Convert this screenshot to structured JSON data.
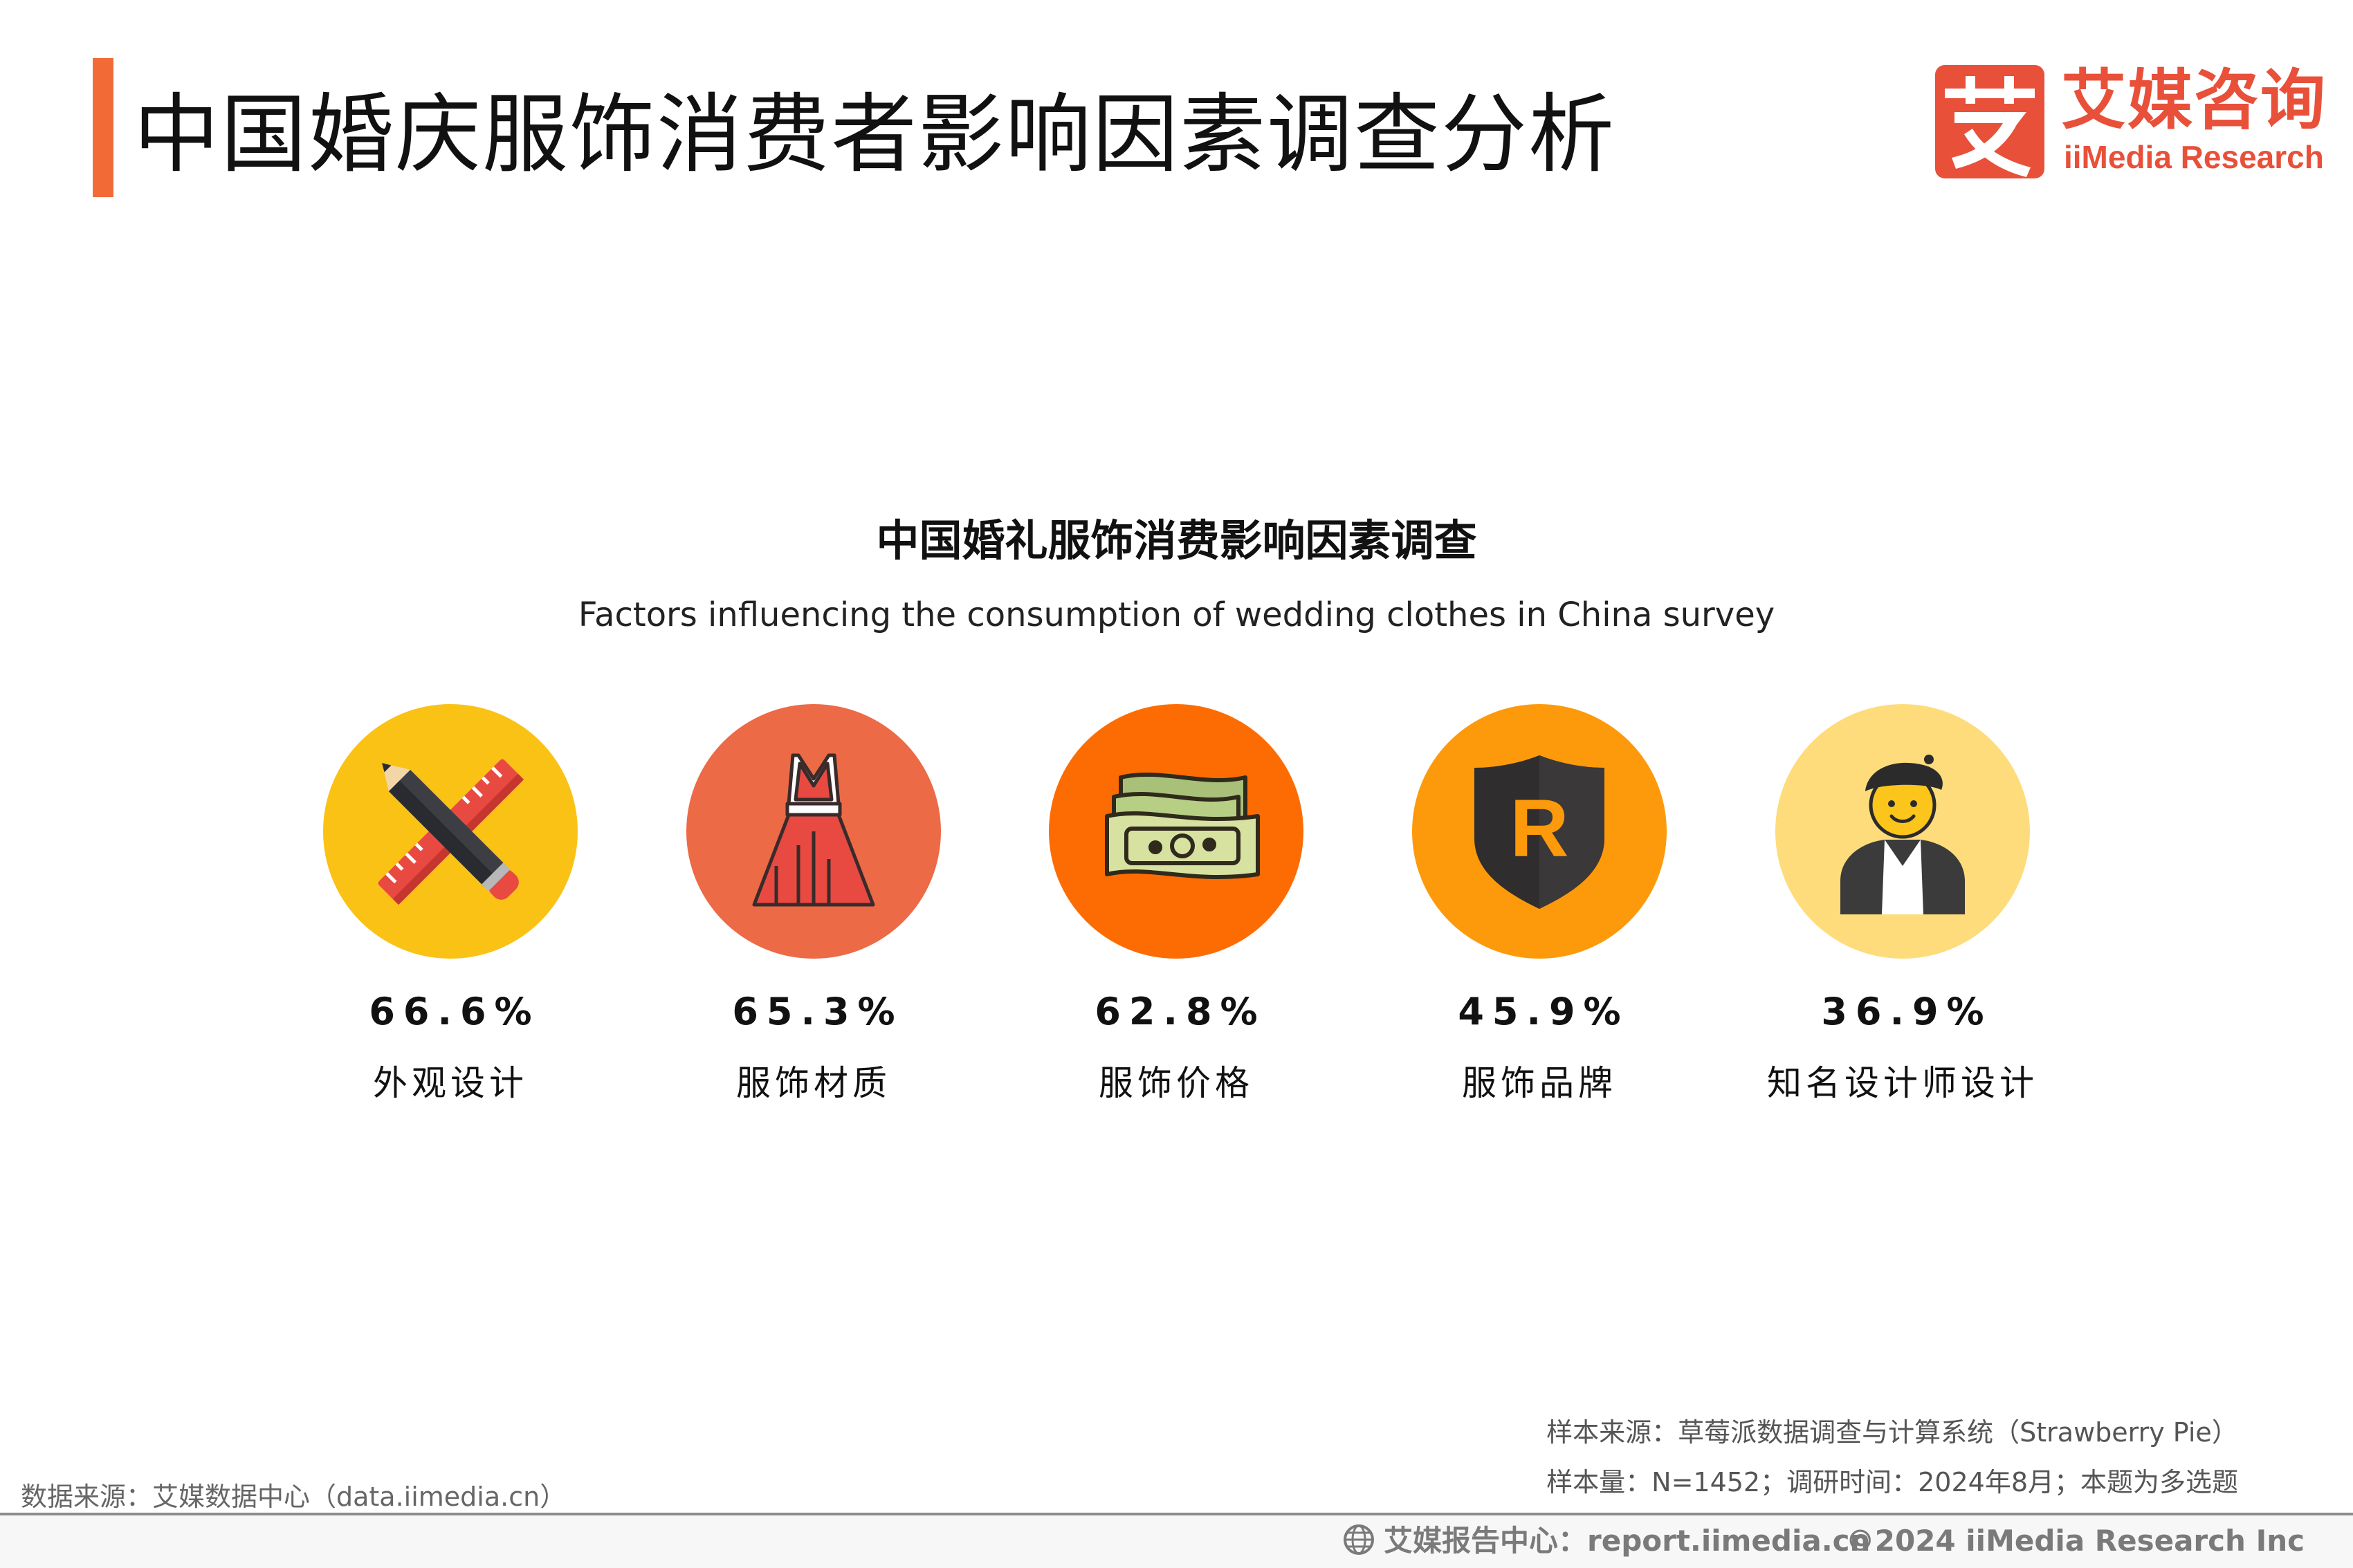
{
  "header": {
    "title": "中国婚庆服饰消费者影响因素调查分析",
    "accent_color": "#f26b36"
  },
  "brand": {
    "mark": "艾",
    "name_cn": "艾媒咨询",
    "name_en": "iiMedia Research",
    "color": "#e8503a"
  },
  "chart_data": {
    "type": "icon-stat",
    "title": "中国婚礼服饰消费影响因素调查",
    "subtitle": "Factors influencing the consumption of wedding clothes in China survey",
    "unit": "%",
    "items": [
      {
        "label": "外观设计",
        "value": 66.6,
        "display": "66.6%",
        "color": "#f9c215",
        "icon": "pencil-ruler-icon"
      },
      {
        "label": "服饰材质",
        "value": 65.3,
        "display": "65.3%",
        "color": "#ec6a45",
        "icon": "dress-icon"
      },
      {
        "label": "服饰价格",
        "value": 62.8,
        "display": "62.8%",
        "color": "#fd6c03",
        "icon": "money-icon"
      },
      {
        "label": "服饰品牌",
        "value": 45.9,
        "display": "45.9%",
        "color": "#fd9a0b",
        "icon": "brand-shield-icon"
      },
      {
        "label": "知名设计师设计",
        "value": 36.9,
        "display": "36.9%",
        "color": "#fedc7b",
        "icon": "designer-icon"
      }
    ]
  },
  "notes": {
    "sample_source": "样本来源：草莓派数据调查与计算系统（Strawberry Pie）",
    "sample_size": "样本量：N=1452；调研时间：2024年8月；本题为多选题"
  },
  "footer": {
    "data_source": "数据来源：艾媒数据中心（data.iimedia.cn）",
    "report_center": "艾媒报告中心：report.iimedia.cn",
    "copyright": "©2024  iiMedia Research Inc"
  }
}
